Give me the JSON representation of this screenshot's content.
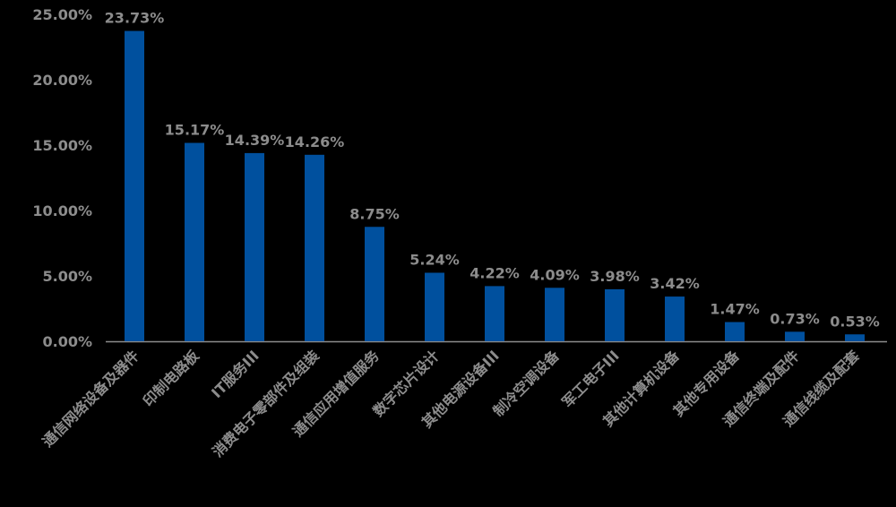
{
  "chart_data": {
    "type": "bar",
    "categories": [
      "通信网络设备及器件",
      "印制电路板",
      "IT服务III",
      "消费电子零部件及组装",
      "通信应用增值服务",
      "数字芯片设计",
      "其他电源设备III",
      "制冷空调设备",
      "军工电子III",
      "其他计算机设备",
      "其他专用设备",
      "通信终端及配件",
      "通信线缆及配套"
    ],
    "values": [
      23.73,
      15.17,
      14.39,
      14.26,
      8.75,
      5.24,
      4.22,
      4.09,
      3.98,
      3.42,
      1.47,
      0.73,
      0.53
    ],
    "value_labels": [
      "23.73%",
      "15.17%",
      "14.39%",
      "14.26%",
      "8.75%",
      "5.24%",
      "4.22%",
      "4.09%",
      "3.98%",
      "3.42%",
      "1.47%",
      "0.73%",
      "0.53%"
    ],
    "yticks": [
      "0.00%",
      "5.00%",
      "10.00%",
      "15.00%",
      "20.00%",
      "25.00%"
    ],
    "ylim": [
      0,
      25
    ],
    "title": "",
    "xlabel": "",
    "ylabel": "",
    "grid": false,
    "colors": {
      "bar": "#00509E",
      "text": "#8C8C8C",
      "axis": "#8C8C8C",
      "background": "#000000"
    }
  }
}
